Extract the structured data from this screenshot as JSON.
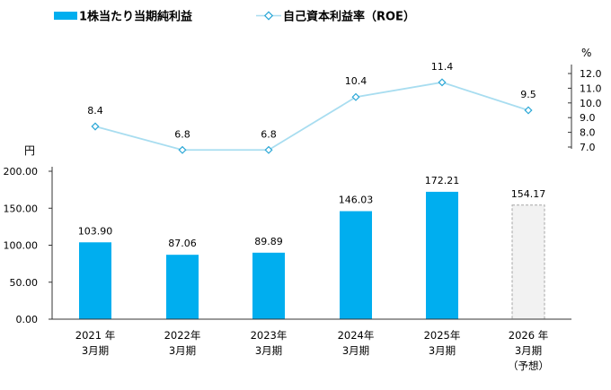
{
  "chart_data": {
    "type": "bar",
    "categories": [
      [
        "2021 年",
        "3月期"
      ],
      [
        "2022年",
        "3月期"
      ],
      [
        "2023年",
        "3月期"
      ],
      [
        "2024年",
        "3月期"
      ],
      [
        "2025年",
        "3月期"
      ],
      [
        "2026 年",
        "3月期",
        "（予想）"
      ]
    ],
    "legend": {
      "bar": "1株当たり当期純利益",
      "line": "自己資本利益率（ROE）"
    },
    "colors": {
      "bar": "#00AEEF",
      "line": "#A8DDF0",
      "forecast_fill": "#F2F2F2",
      "forecast_border": "#A6A6A6"
    },
    "eps": {
      "unit": "円",
      "values": [
        103.9,
        87.06,
        89.89,
        146.03,
        172.21,
        154.17
      ],
      "labels": [
        "103.90",
        "87.06",
        "89.89",
        "146.03",
        "172.21",
        "154.17"
      ],
      "forecast_index": 5,
      "ylim": [
        0,
        200
      ],
      "ticks": [
        "0.00",
        "50.00",
        "100.00",
        "150.00",
        "200.00"
      ]
    },
    "roe": {
      "unit": "%",
      "values": [
        8.4,
        6.8,
        6.8,
        10.4,
        11.4,
        9.5
      ],
      "labels": [
        "8.4",
        "6.8",
        "6.8",
        "10.4",
        "11.4",
        "9.5"
      ],
      "ylim": [
        7.0,
        12.0
      ],
      "ticks": [
        "7.0",
        "8.0",
        "9.0",
        "10.0",
        "11.0",
        "12.0"
      ]
    }
  }
}
